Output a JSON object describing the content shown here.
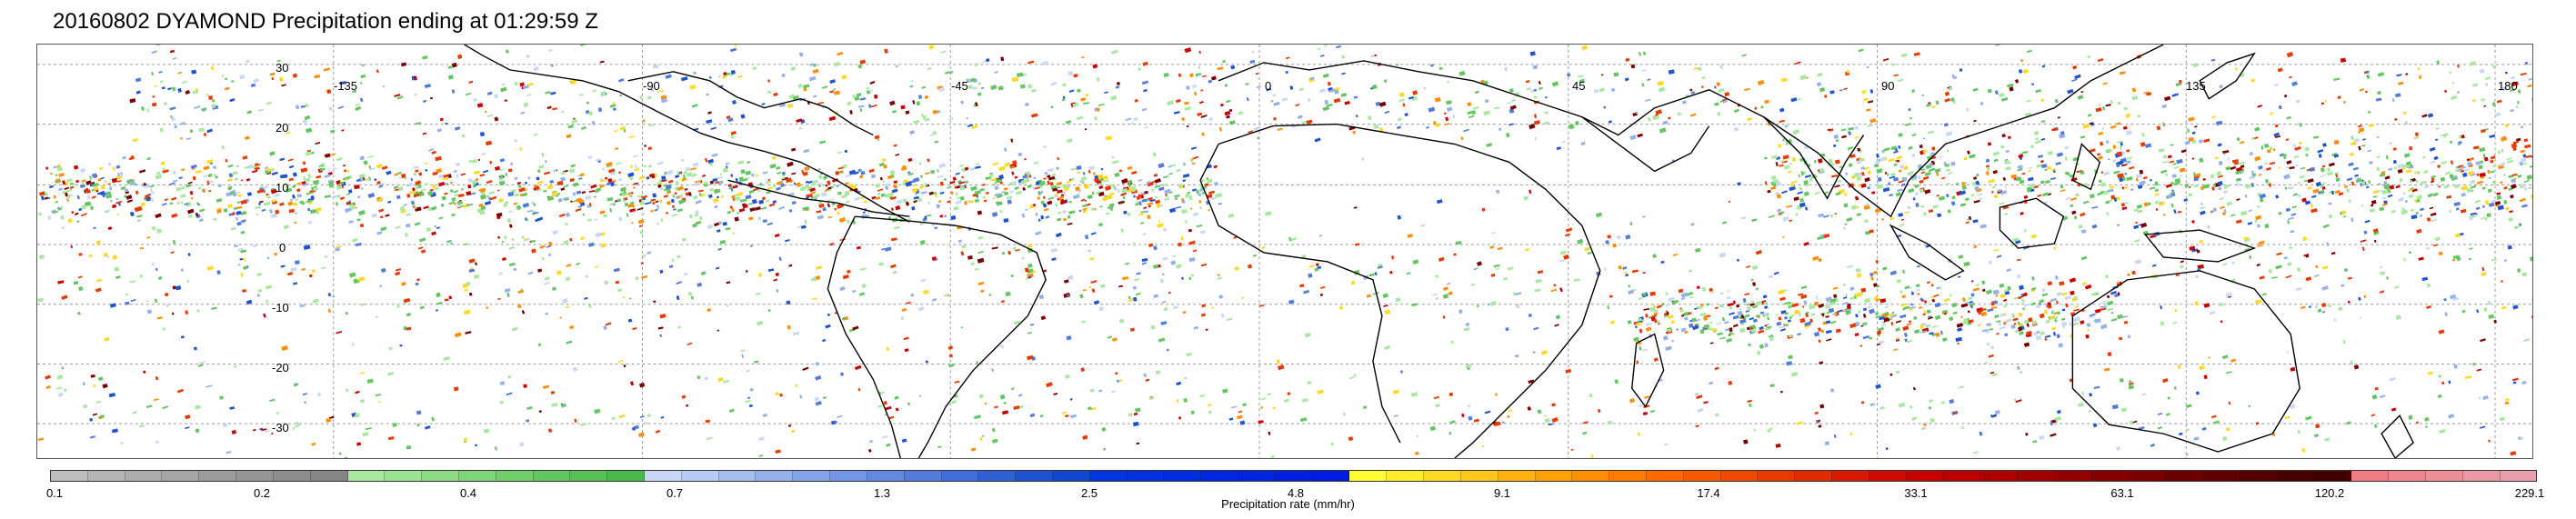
{
  "title": "20160802 DYAMOND Precipitation ending at 01:29:59 Z",
  "map": {
    "lon_labels": [
      "-135",
      "-90",
      "-45",
      "0",
      "45",
      "90",
      "135",
      "180"
    ],
    "lat_labels": [
      "30",
      "20",
      "10",
      "0",
      "-10",
      "-20",
      "-30"
    ],
    "land_outline_color": "#000000",
    "grid_color": "#9a9a9a"
  },
  "colorbar": {
    "label": "Precipitation rate (mm/hr)",
    "ticks": [
      "0.1",
      "0.2",
      "0.4",
      "0.7",
      "1.3",
      "2.5",
      "4.8",
      "9.1",
      "17.4",
      "33.1",
      "63.1",
      "120.2",
      "229.1"
    ],
    "colors": [
      "#bdbdbd",
      "#b5b5b5",
      "#adadad",
      "#a5a5a5",
      "#9d9d9d",
      "#959595",
      "#8d8d8d",
      "#858585",
      "#a9e8a0",
      "#9be293",
      "#8ddb86",
      "#7fd479",
      "#72cd6d",
      "#64c661",
      "#57bf55",
      "#4ab84a",
      "#c9d8f5",
      "#b8cbf2",
      "#a7bdee",
      "#96b0eb",
      "#85a3e7",
      "#7495e3",
      "#6388e0",
      "#527bdc",
      "#416ed8",
      "#3060d4",
      "#1f53d0",
      "#0f46cc",
      "#0035e0",
      "#0030e0",
      "#002ce0",
      "#0028e0",
      "#0024e0",
      "#0020e0",
      "#001ce0",
      "#ffff33",
      "#ffec2b",
      "#ffd923",
      "#ffc61b",
      "#ffb313",
      "#ffa00b",
      "#ff8d05",
      "#ff7a00",
      "#ff6a00",
      "#f85a00",
      "#f04a00",
      "#e83a00",
      "#e02a00",
      "#d81a00",
      "#d00a00",
      "#c80000",
      "#bb0000",
      "#ae0000",
      "#a10000",
      "#940000",
      "#870000",
      "#7a0000",
      "#6d0000",
      "#600000",
      "#530000",
      "#480000",
      "#400000",
      "#f07d86",
      "#ee8690",
      "#ec8f99",
      "#ea98a3",
      "#e8a1ac"
    ]
  }
}
